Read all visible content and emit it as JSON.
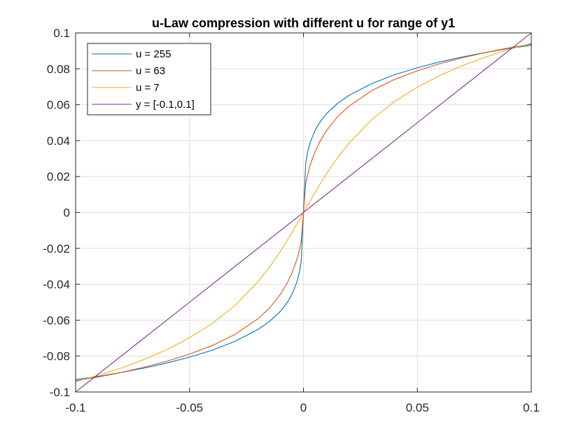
{
  "chart_data": {
    "type": "line",
    "title": "u-Law compression with different u for range of y1",
    "xlabel": "",
    "ylabel": "",
    "xlim": [
      -0.1,
      0.1
    ],
    "ylim": [
      -0.1,
      0.1
    ],
    "x_ticks": [
      -0.1,
      -0.05,
      0,
      0.05,
      0.1
    ],
    "x_tick_labels": [
      "-0.1",
      "-0.05",
      "0",
      "0.05",
      "0.1"
    ],
    "y_ticks": [
      -0.1,
      -0.08,
      -0.06,
      -0.04,
      -0.02,
      0,
      0.02,
      0.04,
      0.06,
      0.08,
      0.1
    ],
    "y_tick_labels": [
      "-0.1",
      "-0.08",
      "-0.06",
      "-0.04",
      "-0.02",
      "0",
      "0.02",
      "0.04",
      "0.06",
      "0.08",
      "0.1"
    ],
    "grid": true,
    "legend_position": "top-left",
    "x": [
      -0.1,
      -0.09,
      -0.08,
      -0.07,
      -0.06,
      -0.05,
      -0.04,
      -0.03,
      -0.02,
      -0.015,
      -0.01,
      -0.007,
      -0.005,
      -0.003,
      -0.002,
      -0.001,
      0,
      0.001,
      0.002,
      0.003,
      0.005,
      0.007,
      0.01,
      0.015,
      0.02,
      0.03,
      0.04,
      0.05,
      0.06,
      0.07,
      0.08,
      0.09,
      0.1
    ],
    "series": [
      {
        "name": "u = 255",
        "color": "#0072bd",
        "values": [
          -0.0931,
          -0.0913,
          -0.0891,
          -0.0867,
          -0.0839,
          -0.0806,
          -0.0767,
          -0.0718,
          -0.0652,
          -0.0608,
          -0.0549,
          -0.0499,
          -0.0455,
          -0.0392,
          -0.0346,
          -0.0275,
          0,
          0.0275,
          0.0346,
          0.0392,
          0.0455,
          0.0499,
          0.0549,
          0.0608,
          0.0652,
          0.0718,
          0.0767,
          0.0806,
          0.0839,
          0.0867,
          0.0891,
          0.0913,
          0.0931
        ]
      },
      {
        "name": "u = 63",
        "color": "#d95319",
        "values": [
          -0.0938,
          -0.0916,
          -0.0891,
          -0.0862,
          -0.0829,
          -0.0789,
          -0.0741,
          -0.0679,
          -0.0592,
          -0.0534,
          -0.0454,
          -0.039,
          -0.0336,
          -0.0266,
          -0.0221,
          -0.0163,
          0,
          0.0163,
          0.0221,
          0.0266,
          0.0336,
          0.039,
          0.0454,
          0.0534,
          0.0592,
          0.0679,
          0.0741,
          0.0789,
          0.0829,
          0.0862,
          0.0891,
          0.0916,
          0.0938
        ]
      },
      {
        "name": "u = 7",
        "color": "#edb120",
        "values": [
          -0.0943,
          -0.0907,
          -0.0866,
          -0.0819,
          -0.0764,
          -0.0698,
          -0.0618,
          -0.0518,
          -0.0386,
          -0.0306,
          -0.0214,
          -0.0152,
          -0.011,
          -0.0066,
          -0.0044,
          -0.0022,
          0,
          0.0022,
          0.0044,
          0.0066,
          0.011,
          0.0152,
          0.0214,
          0.0306,
          0.0386,
          0.0518,
          0.0618,
          0.0698,
          0.0764,
          0.0819,
          0.0866,
          0.0907,
          0.0943
        ]
      },
      {
        "name": "y = [-0.1,0.1]",
        "color": "#7e2f8e",
        "values": [
          -0.1,
          -0.09,
          -0.08,
          -0.07,
          -0.06,
          -0.05,
          -0.04,
          -0.03,
          -0.02,
          -0.015,
          -0.01,
          -0.007,
          -0.005,
          -0.003,
          -0.002,
          -0.001,
          0,
          0.001,
          0.002,
          0.003,
          0.005,
          0.007,
          0.01,
          0.015,
          0.02,
          0.03,
          0.04,
          0.05,
          0.06,
          0.07,
          0.08,
          0.09,
          0.1
        ]
      }
    ]
  }
}
